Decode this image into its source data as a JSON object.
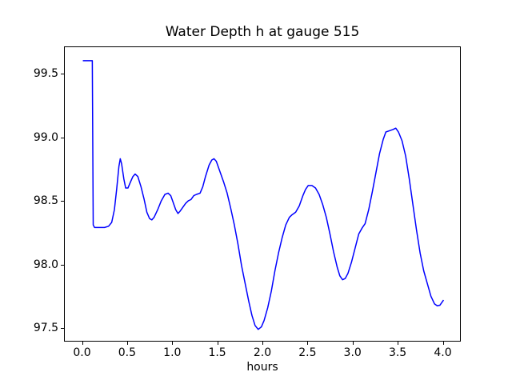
{
  "figure": {
    "background": "#ffffff",
    "text_color": "#000000",
    "spine_color": "#000000"
  },
  "chart_data": {
    "type": "line",
    "title": "Water Depth h at gauge 515",
    "xlabel": "hours",
    "ylabel": "",
    "xlim": [
      -0.2,
      4.2
    ],
    "ylim": [
      97.394,
      99.716
    ],
    "x_ticks": [
      0.0,
      0.5,
      1.0,
      1.5,
      2.0,
      2.5,
      3.0,
      3.5,
      4.0
    ],
    "x_tick_labels": [
      "0.0",
      "0.5",
      "1.0",
      "1.5",
      "2.0",
      "2.5",
      "3.0",
      "3.5",
      "4.0"
    ],
    "y_ticks": [
      97.5,
      98.0,
      98.5,
      99.0,
      99.5
    ],
    "y_tick_labels": [
      "97.5",
      "98.0",
      "98.5",
      "99.0",
      "99.5"
    ],
    "grid": false,
    "legend": null,
    "line_color": "#0000ff",
    "line_width": 1.5,
    "series": [
      {
        "name": "water-depth-h-gauge-515",
        "color": "#0000ff",
        "points": [
          [
            0.0,
            99.61
          ],
          [
            0.06,
            99.61
          ],
          [
            0.105,
            99.61
          ],
          [
            0.115,
            98.32
          ],
          [
            0.13,
            98.3
          ],
          [
            0.18,
            98.3
          ],
          [
            0.24,
            98.3
          ],
          [
            0.285,
            98.31
          ],
          [
            0.32,
            98.34
          ],
          [
            0.35,
            98.44
          ],
          [
            0.375,
            98.6
          ],
          [
            0.4,
            98.78
          ],
          [
            0.415,
            98.84
          ],
          [
            0.43,
            98.8
          ],
          [
            0.455,
            98.68
          ],
          [
            0.475,
            98.61
          ],
          [
            0.5,
            98.61
          ],
          [
            0.53,
            98.66
          ],
          [
            0.555,
            98.7
          ],
          [
            0.58,
            98.72
          ],
          [
            0.61,
            98.7
          ],
          [
            0.645,
            98.62
          ],
          [
            0.68,
            98.52
          ],
          [
            0.71,
            98.42
          ],
          [
            0.74,
            98.37
          ],
          [
            0.765,
            98.36
          ],
          [
            0.79,
            98.38
          ],
          [
            0.83,
            98.44
          ],
          [
            0.87,
            98.51
          ],
          [
            0.91,
            98.56
          ],
          [
            0.945,
            98.57
          ],
          [
            0.975,
            98.55
          ],
          [
            1.0,
            98.5
          ],
          [
            1.03,
            98.44
          ],
          [
            1.055,
            98.41
          ],
          [
            1.08,
            98.43
          ],
          [
            1.11,
            98.46
          ],
          [
            1.14,
            98.49
          ],
          [
            1.17,
            98.51
          ],
          [
            1.2,
            98.52
          ],
          [
            1.23,
            98.55
          ],
          [
            1.26,
            98.56
          ],
          [
            1.3,
            98.57
          ],
          [
            1.33,
            98.62
          ],
          [
            1.36,
            98.7
          ],
          [
            1.4,
            98.79
          ],
          [
            1.43,
            98.83
          ],
          [
            1.455,
            98.84
          ],
          [
            1.48,
            98.82
          ],
          [
            1.52,
            98.74
          ],
          [
            1.56,
            98.66
          ],
          [
            1.6,
            98.57
          ],
          [
            1.64,
            98.45
          ],
          [
            1.68,
            98.32
          ],
          [
            1.72,
            98.17
          ],
          [
            1.76,
            98.0
          ],
          [
            1.8,
            97.86
          ],
          [
            1.84,
            97.72
          ],
          [
            1.875,
            97.61
          ],
          [
            1.91,
            97.53
          ],
          [
            1.945,
            97.5
          ],
          [
            1.98,
            97.52
          ],
          [
            2.01,
            97.57
          ],
          [
            2.05,
            97.67
          ],
          [
            2.09,
            97.8
          ],
          [
            2.13,
            97.96
          ],
          [
            2.17,
            98.1
          ],
          [
            2.21,
            98.22
          ],
          [
            2.25,
            98.32
          ],
          [
            2.29,
            98.38
          ],
          [
            2.32,
            98.4
          ],
          [
            2.36,
            98.42
          ],
          [
            2.4,
            98.47
          ],
          [
            2.44,
            98.55
          ],
          [
            2.47,
            98.6
          ],
          [
            2.5,
            98.63
          ],
          [
            2.54,
            98.63
          ],
          [
            2.58,
            98.61
          ],
          [
            2.62,
            98.56
          ],
          [
            2.66,
            98.48
          ],
          [
            2.7,
            98.38
          ],
          [
            2.74,
            98.25
          ],
          [
            2.78,
            98.11
          ],
          [
            2.82,
            97.99
          ],
          [
            2.85,
            97.92
          ],
          [
            2.88,
            97.89
          ],
          [
            2.91,
            97.9
          ],
          [
            2.94,
            97.94
          ],
          [
            2.98,
            98.03
          ],
          [
            3.02,
            98.14
          ],
          [
            3.06,
            98.25
          ],
          [
            3.1,
            98.3
          ],
          [
            3.13,
            98.33
          ],
          [
            3.17,
            98.44
          ],
          [
            3.21,
            98.58
          ],
          [
            3.25,
            98.73
          ],
          [
            3.29,
            98.88
          ],
          [
            3.33,
            98.99
          ],
          [
            3.36,
            99.05
          ],
          [
            3.4,
            99.06
          ],
          [
            3.44,
            99.07
          ],
          [
            3.47,
            99.08
          ],
          [
            3.5,
            99.05
          ],
          [
            3.54,
            98.98
          ],
          [
            3.58,
            98.86
          ],
          [
            3.62,
            98.68
          ],
          [
            3.66,
            98.48
          ],
          [
            3.7,
            98.28
          ],
          [
            3.74,
            98.1
          ],
          [
            3.78,
            97.96
          ],
          [
            3.82,
            97.86
          ],
          [
            3.86,
            97.76
          ],
          [
            3.9,
            97.7
          ],
          [
            3.93,
            97.685
          ],
          [
            3.96,
            97.69
          ],
          [
            4.0,
            97.73
          ]
        ]
      }
    ]
  }
}
